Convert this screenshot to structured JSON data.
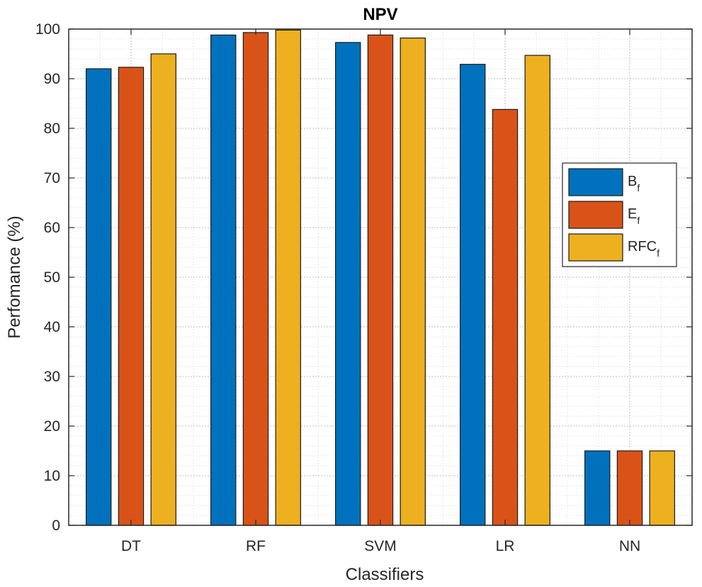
{
  "chart_data": {
    "type": "bar",
    "title": "NPV",
    "xlabel": "Classifiers",
    "ylabel": "Perfomance (%)",
    "categories": [
      "DT",
      "RF",
      "SVM",
      "LR",
      "NN"
    ],
    "ylim": [
      0,
      100
    ],
    "yticks": [
      0,
      10,
      20,
      30,
      40,
      50,
      60,
      70,
      80,
      90,
      100
    ],
    "grid": true,
    "legend_position": "right",
    "series": [
      {
        "name": "B",
        "subscript": "f",
        "color": "#0072BD",
        "values": [
          92,
          98.8,
          97.3,
          92.9,
          15
        ]
      },
      {
        "name": "E",
        "subscript": "f",
        "color": "#D95319",
        "values": [
          92.3,
          99.3,
          98.8,
          83.8,
          15
        ]
      },
      {
        "name": "RFC",
        "subscript": "f",
        "color": "#EDB120",
        "values": [
          95,
          99.8,
          98.2,
          94.7,
          15
        ]
      }
    ]
  }
}
